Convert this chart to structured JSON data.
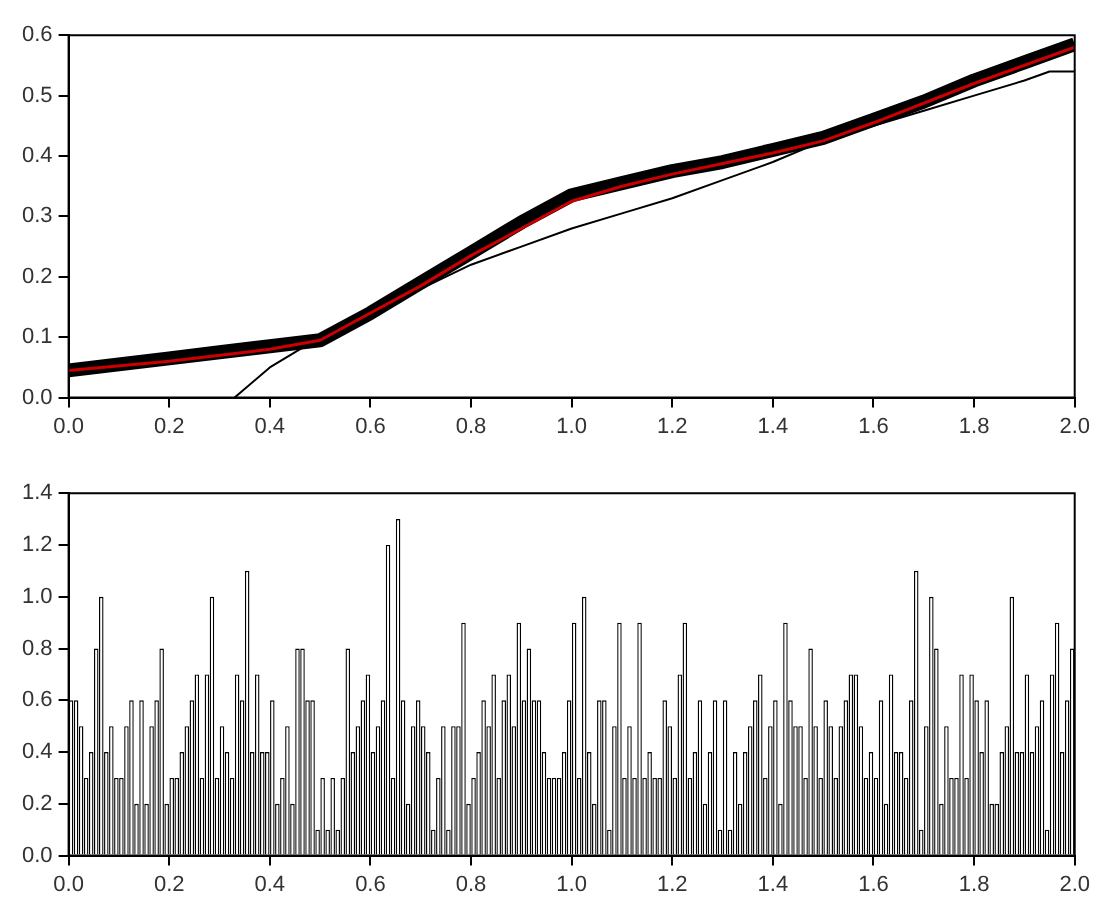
{
  "chart_data": [
    {
      "type": "line",
      "marker": "none",
      "xlim": [
        0,
        2
      ],
      "ylim": [
        0,
        0.6
      ],
      "xticks": [
        {
          "value": 0,
          "label": "0.0"
        },
        {
          "value": 0.2,
          "label": "0.2"
        },
        {
          "value": 0.4,
          "label": "0.4"
        },
        {
          "value": 0.6,
          "label": "0.6"
        },
        {
          "value": 0.8,
          "label": "0.8"
        },
        {
          "value": 1,
          "label": "1.0"
        },
        {
          "value": 1.2,
          "label": "1.2"
        },
        {
          "value": 1.4,
          "label": "1.4"
        },
        {
          "value": 1.6,
          "label": "1.6"
        },
        {
          "value": 1.8,
          "label": "1.8"
        },
        {
          "value": 2,
          "label": "2.0"
        }
      ],
      "yticks": [
        {
          "value": 0,
          "label": "0.0"
        },
        {
          "value": 0.1,
          "label": "0.1"
        },
        {
          "value": 0.2,
          "label": "0.2"
        },
        {
          "value": 0.3,
          "label": "0.3"
        },
        {
          "value": 0.4,
          "label": "0.4"
        },
        {
          "value": 0.5,
          "label": "0.5"
        },
        {
          "value": 0.6,
          "label": "0.6"
        }
      ],
      "series": [
        {
          "color": "#000000",
          "x": [
            0,
            0.1,
            0.2,
            0.3,
            0.4,
            0.5,
            0.6,
            0.7,
            0.8,
            0.9,
            1.0,
            1.1,
            1.2,
            1.3,
            1.4,
            1.5,
            1.6,
            1.7,
            1.8,
            1.9,
            2.0
          ],
          "values": [
            0.045,
            0.055,
            0.065,
            0.075,
            0.085,
            0.095,
            0.14,
            0.19,
            0.24,
            0.29,
            0.335,
            0.355,
            0.375,
            0.39,
            0.41,
            0.43,
            0.46,
            0.49,
            0.525,
            0.555,
            0.585
          ]
        },
        {
          "color": "#000000",
          "x": [
            0.33,
            0.4,
            0.5,
            0.6,
            0.7,
            0.8,
            0.9,
            1.0,
            1.1,
            1.2,
            1.3,
            1.4,
            1.5,
            1.6,
            1.7,
            1.8,
            1.9,
            1.95,
            2.0
          ],
          "values": [
            0,
            0.05,
            0.1,
            0.14,
            0.18,
            0.22,
            0.25,
            0.28,
            0.305,
            0.33,
            0.36,
            0.39,
            0.425,
            0.45,
            0.475,
            0.5,
            0.525,
            0.54,
            0.54
          ]
        },
        {
          "color": "#cc0000",
          "x": [
            0,
            0.2,
            0.4,
            0.5,
            0.6,
            0.7,
            0.8,
            0.9,
            1.0,
            1.1,
            1.2,
            1.4,
            1.5,
            1.6,
            1.8,
            2.0
          ],
          "values": [
            0.045,
            0.06,
            0.08,
            0.095,
            0.14,
            0.185,
            0.235,
            0.28,
            0.325,
            0.35,
            0.37,
            0.405,
            0.425,
            0.455,
            0.52,
            0.58
          ]
        }
      ]
    },
    {
      "type": "histogram",
      "color": "#ffffff",
      "xlim": [
        0,
        2
      ],
      "ylim": [
        0,
        1.4
      ],
      "xticks": [
        {
          "value": 0,
          "label": "0.0"
        },
        {
          "value": 0.2,
          "label": "0.2"
        },
        {
          "value": 0.4,
          "label": "0.4"
        },
        {
          "value": 0.6,
          "label": "0.6"
        },
        {
          "value": 0.8,
          "label": "0.8"
        },
        {
          "value": 1,
          "label": "1.0"
        },
        {
          "value": 1.2,
          "label": "1.2"
        },
        {
          "value": 1.4,
          "label": "1.4"
        },
        {
          "value": 1.6,
          "label": "1.6"
        },
        {
          "value": 1.8,
          "label": "1.8"
        },
        {
          "value": 2,
          "label": "2.0"
        }
      ],
      "yticks": [
        {
          "value": 0,
          "label": "0.0"
        },
        {
          "value": 0.2,
          "label": "0.2"
        },
        {
          "value": 0.4,
          "label": "0.4"
        },
        {
          "value": 0.6,
          "label": "0.6"
        },
        {
          "value": 0.8,
          "label": "0.8"
        },
        {
          "value": 1,
          "label": "1.0"
        },
        {
          "value": 1.2,
          "label": "1.2"
        },
        {
          "value": 1.4,
          "label": "1.4"
        }
      ],
      "bins": [
        0,
        0.01,
        0.02,
        0.03,
        0.04,
        0.05,
        0.06,
        0.07,
        0.08,
        0.09,
        0.1,
        0.11,
        0.12,
        0.13,
        0.14,
        0.15,
        0.16,
        0.17,
        0.18,
        0.19,
        0.2,
        0.21,
        0.22,
        0.23,
        0.24,
        0.25,
        0.26,
        0.27,
        0.28,
        0.29,
        0.3,
        0.31,
        0.32,
        0.33,
        0.34,
        0.35,
        0.36,
        0.37,
        0.38,
        0.39,
        0.4,
        0.41,
        0.42,
        0.43,
        0.44,
        0.45,
        0.46,
        0.47,
        0.48,
        0.49,
        0.5,
        0.51,
        0.52,
        0.53,
        0.54,
        0.55,
        0.56,
        0.57,
        0.58,
        0.59,
        0.6,
        0.61,
        0.62,
        0.63,
        0.64,
        0.65,
        0.66,
        0.67,
        0.68,
        0.69,
        0.7,
        0.71,
        0.72,
        0.73,
        0.74,
        0.75,
        0.76,
        0.77,
        0.78,
        0.79,
        0.8,
        0.81,
        0.82,
        0.83,
        0.84,
        0.85,
        0.86,
        0.87,
        0.88,
        0.89,
        0.9,
        0.91,
        0.92,
        0.93,
        0.94,
        0.95,
        0.96,
        0.97,
        0.98,
        0.99,
        1,
        1.01,
        1.02,
        1.03,
        1.04,
        1.05,
        1.06,
        1.07,
        1.08,
        1.09,
        1.1,
        1.11,
        1.12,
        1.13,
        1.14,
        1.15,
        1.16,
        1.17,
        1.18,
        1.19,
        1.2,
        1.21,
        1.22,
        1.23,
        1.24,
        1.25,
        1.26,
        1.27,
        1.28,
        1.29,
        1.3,
        1.31,
        1.32,
        1.33,
        1.34,
        1.35,
        1.36,
        1.37,
        1.38,
        1.39,
        1.4,
        1.41,
        1.42,
        1.43,
        1.44,
        1.45,
        1.46,
        1.47,
        1.48,
        1.49,
        1.5,
        1.51,
        1.52,
        1.53,
        1.54,
        1.55,
        1.56,
        1.57,
        1.58,
        1.59,
        1.6,
        1.61,
        1.62,
        1.63,
        1.64,
        1.65,
        1.66,
        1.67,
        1.68,
        1.69,
        1.7,
        1.71,
        1.72,
        1.73,
        1.74,
        1.75,
        1.76,
        1.77,
        1.78,
        1.79,
        1.8,
        1.81,
        1.82,
        1.83,
        1.84,
        1.85,
        1.86,
        1.87,
        1.88,
        1.89,
        1.9,
        1.91,
        1.92,
        1.93,
        1.94,
        1.95,
        1.96,
        1.97,
        1.98,
        1.99,
        2
      ],
      "values": [
        0.6,
        0.6,
        0.5,
        0.3,
        0.4,
        0.8,
        1.0,
        0.4,
        0.5,
        0.3,
        0.3,
        0.5,
        0.6,
        0.2,
        0.6,
        0.2,
        0.5,
        0.6,
        0.8,
        0.2,
        0.3,
        0.3,
        0.4,
        0.5,
        0.6,
        0.7,
        0.3,
        0.7,
        1.0,
        0.3,
        0.5,
        0.4,
        0.3,
        0.7,
        0.6,
        1.1,
        0.4,
        0.7,
        0.4,
        0.4,
        0.6,
        0.2,
        0.3,
        0.5,
        0.2,
        0.8,
        0.8,
        0.6,
        0.6,
        0.1,
        0.3,
        0.1,
        0.3,
        0.1,
        0.3,
        0.8,
        0.4,
        0.5,
        0.6,
        0.7,
        0.4,
        0.5,
        0.6,
        1.2,
        0.3,
        1.3,
        0.6,
        0.2,
        0.5,
        0.6,
        0.5,
        0.4,
        0.1,
        0.3,
        0.5,
        0.1,
        0.5,
        0.5,
        0.9,
        0.2,
        0.3,
        0.4,
        0.6,
        0.5,
        0.7,
        0.3,
        0.6,
        0.7,
        0.5,
        0.9,
        0.6,
        0.8,
        0.6,
        0.6,
        0.4,
        0.3,
        0.3,
        0.3,
        0.4,
        0.6,
        0.9,
        0.3,
        1.0,
        0.4,
        0.2,
        0.6,
        0.6,
        0.1,
        0.5,
        0.9,
        0.3,
        0.5,
        0.3,
        0.9,
        0.3,
        0.4,
        0.3,
        0.3,
        0.6,
        0.5,
        0.3,
        0.7,
        0.9,
        0.3,
        0.4,
        0.6,
        0.2,
        0.4,
        0.6,
        0.1,
        0.6,
        0.1,
        0.4,
        0.2,
        0.4,
        0.5,
        0.6,
        0.7,
        0.3,
        0.5,
        0.6,
        0.2,
        0.9,
        0.6,
        0.5,
        0.5,
        0.3,
        0.8,
        0.5,
        0.3,
        0.6,
        0.5,
        0.3,
        0.5,
        0.6,
        0.7,
        0.7,
        0.5,
        0.3,
        0.4,
        0.3,
        0.6,
        0.2,
        0.7,
        0.4,
        0.4,
        0.3,
        0.6,
        1.1,
        0.1,
        0.5,
        1.0,
        0.8,
        0.2,
        0.5,
        0.3,
        0.3,
        0.7,
        0.3,
        0.7,
        0.6,
        0.4,
        0.6,
        0.2,
        0.2,
        0.4,
        0.5,
        1.0,
        0.4,
        0.4,
        0.7,
        0.4,
        0.5,
        0.6,
        0.1,
        0.7,
        0.9,
        0.4,
        0.6,
        0.8
      ]
    }
  ]
}
